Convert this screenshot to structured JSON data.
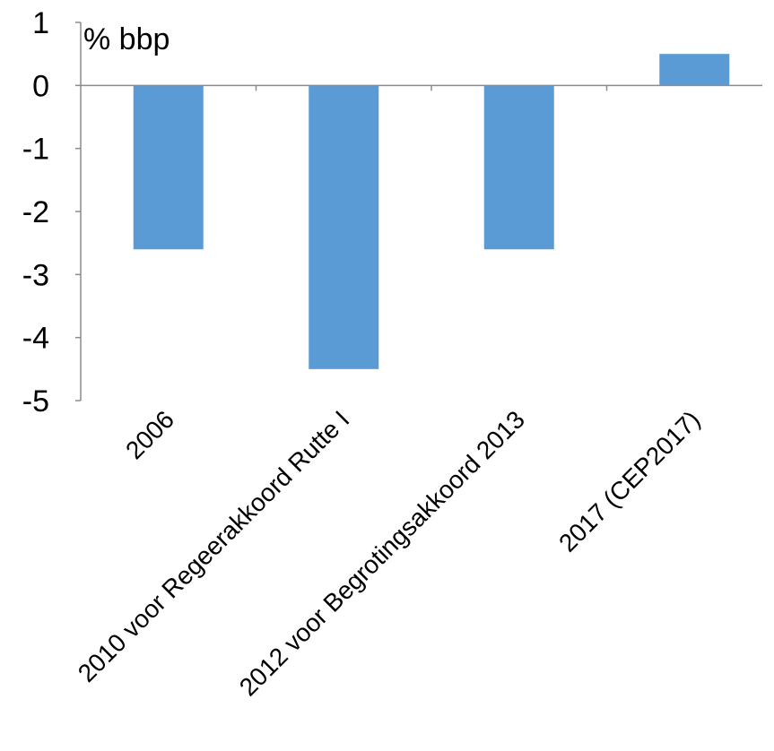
{
  "chart_data": {
    "type": "bar",
    "title": "",
    "unit_label": "% bbp",
    "xlabel": "",
    "ylabel": "",
    "categories": [
      "2006",
      "2010 voor Regeerakkoord Rutte I",
      "2012 voor Begrotingsakkoord 2013",
      "2017 (CEP2017)"
    ],
    "values": [
      -2.6,
      -4.5,
      -2.6,
      0.5
    ],
    "ylim": [
      -5,
      1
    ],
    "yticks": [
      "1",
      "0",
      "-1",
      "-2",
      "-3",
      "-4",
      "-5"
    ],
    "grid": false,
    "legend": "none",
    "bar_color": "#5b9bd5",
    "axis_color": "#8c8c8c"
  }
}
